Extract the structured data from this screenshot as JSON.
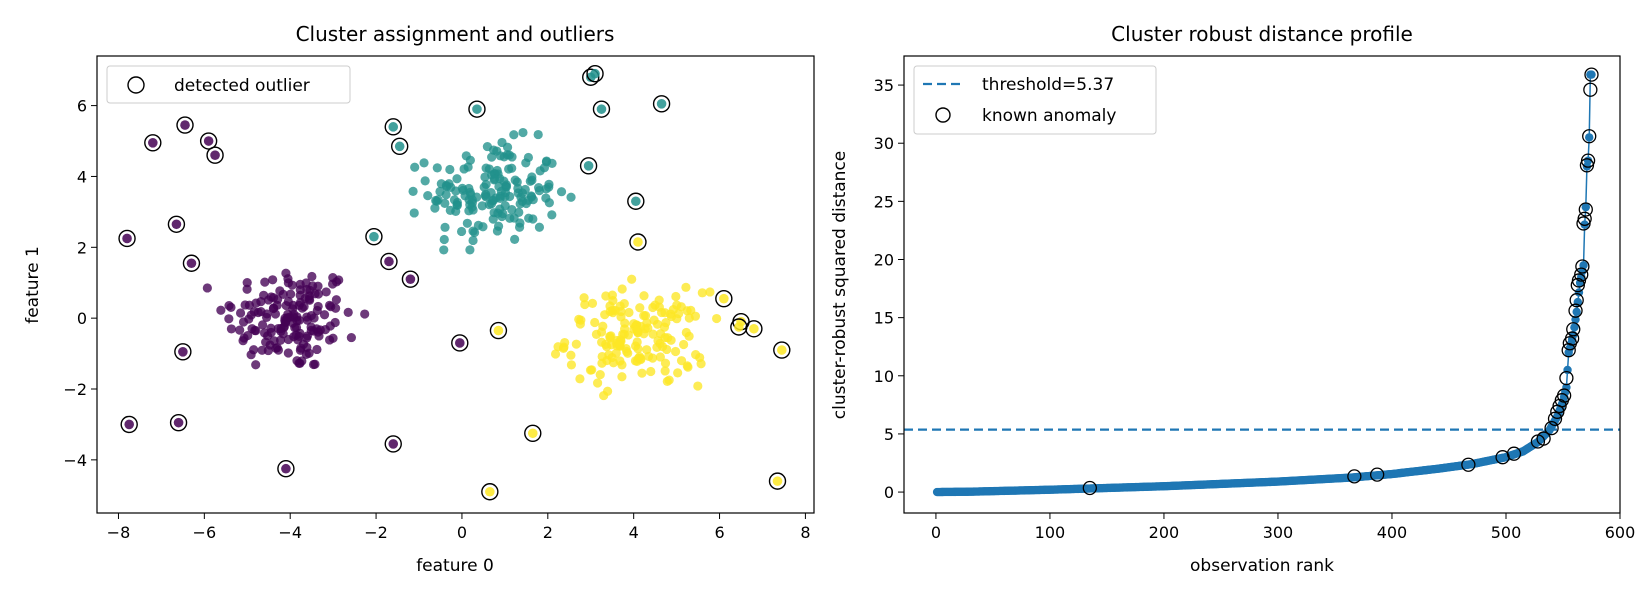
{
  "chart_data": [
    {
      "type": "scatter",
      "title": "Cluster assignment and outliers",
      "xlabel": "feature 0",
      "ylabel": "feature 1",
      "xlim": [
        -8.5,
        8.2
      ],
      "ylim": [
        -5.5,
        7.4
      ],
      "xticks": [
        -8,
        -6,
        -4,
        -2,
        0,
        2,
        4,
        6,
        8
      ],
      "yticks": [
        -4,
        -2,
        0,
        2,
        4,
        6
      ],
      "legend": {
        "placement": "upper-left",
        "entries": [
          "detected outlier"
        ]
      },
      "clusters": [
        {
          "color": "#440154",
          "center": [
            -4.0,
            0.0
          ],
          "spread": [
            0.75,
            0.75
          ],
          "n": 160
        },
        {
          "color": "#21918c",
          "center": [
            0.75,
            3.55
          ],
          "spread": [
            0.75,
            0.7
          ],
          "n": 160
        },
        {
          "color": "#fde725",
          "center": [
            4.05,
            -0.55
          ],
          "spread": [
            0.8,
            0.65
          ],
          "n": 160
        }
      ],
      "outliers": [
        {
          "x": -7.2,
          "y": 4.95,
          "c": "#440154"
        },
        {
          "x": -6.45,
          "y": 5.45,
          "c": "#440154"
        },
        {
          "x": -5.9,
          "y": 5.0,
          "c": "#440154"
        },
        {
          "x": -5.75,
          "y": 4.6,
          "c": "#440154"
        },
        {
          "x": -7.8,
          "y": 2.25,
          "c": "#440154"
        },
        {
          "x": -6.65,
          "y": 2.65,
          "c": "#440154"
        },
        {
          "x": -6.3,
          "y": 1.55,
          "c": "#440154"
        },
        {
          "x": -6.5,
          "y": -0.95,
          "c": "#440154"
        },
        {
          "x": -7.75,
          "y": -3.0,
          "c": "#440154"
        },
        {
          "x": -6.6,
          "y": -2.95,
          "c": "#440154"
        },
        {
          "x": -4.1,
          "y": -4.25,
          "c": "#440154"
        },
        {
          "x": -1.7,
          "y": 1.6,
          "c": "#440154"
        },
        {
          "x": -1.2,
          "y": 1.1,
          "c": "#440154"
        },
        {
          "x": -1.6,
          "y": -3.55,
          "c": "#440154"
        },
        {
          "x": -0.05,
          "y": -0.7,
          "c": "#440154"
        },
        {
          "x": -1.6,
          "y": 5.4,
          "c": "#21918c"
        },
        {
          "x": -1.45,
          "y": 4.85,
          "c": "#21918c"
        },
        {
          "x": 0.35,
          "y": 5.9,
          "c": "#21918c"
        },
        {
          "x": -2.05,
          "y": 2.3,
          "c": "#21918c"
        },
        {
          "x": 3.0,
          "y": 6.8,
          "c": "#21918c"
        },
        {
          "x": 3.1,
          "y": 6.9,
          "c": "#21918c"
        },
        {
          "x": 3.25,
          "y": 5.9,
          "c": "#21918c"
        },
        {
          "x": 4.65,
          "y": 6.05,
          "c": "#21918c"
        },
        {
          "x": 2.95,
          "y": 4.3,
          "c": "#21918c"
        },
        {
          "x": 4.05,
          "y": 3.3,
          "c": "#21918c"
        },
        {
          "x": 4.1,
          "y": 2.15,
          "c": "#fde725"
        },
        {
          "x": 0.85,
          "y": -0.35,
          "c": "#fde725"
        },
        {
          "x": 1.65,
          "y": -3.25,
          "c": "#fde725"
        },
        {
          "x": 0.65,
          "y": -4.9,
          "c": "#fde725"
        },
        {
          "x": 6.1,
          "y": 0.55,
          "c": "#fde725"
        },
        {
          "x": 6.5,
          "y": -0.1,
          "c": "#fde725"
        },
        {
          "x": 6.45,
          "y": -0.25,
          "c": "#fde725"
        },
        {
          "x": 6.8,
          "y": -0.3,
          "c": "#fde725"
        },
        {
          "x": 7.45,
          "y": -0.9,
          "c": "#fde725"
        },
        {
          "x": 7.35,
          "y": -4.6,
          "c": "#fde725"
        }
      ]
    },
    {
      "type": "line",
      "title": "Cluster robust distance profile",
      "xlabel": "observation rank",
      "ylabel": "cluster-robust squared distance",
      "xlim": [
        -28,
        600
      ],
      "ylim": [
        -1.8,
        37.5
      ],
      "xticks": [
        0,
        100,
        200,
        300,
        400,
        500,
        600
      ],
      "yticks": [
        0,
        5,
        10,
        15,
        20,
        25,
        30,
        35
      ],
      "threshold": 5.37,
      "n_points": 575,
      "legend": {
        "placement": "upper-left",
        "entries": [
          "threshold=5.37",
          "known anomaly"
        ]
      },
      "series_color": "#1f77b4",
      "profile_knots": [
        [
          0,
          0
        ],
        [
          30,
          0.03
        ],
        [
          100,
          0.2
        ],
        [
          200,
          0.5
        ],
        [
          300,
          0.9
        ],
        [
          365,
          1.25
        ],
        [
          400,
          1.55
        ],
        [
          440,
          2.0
        ],
        [
          470,
          2.4
        ],
        [
          500,
          3.0
        ],
        [
          515,
          3.5
        ],
        [
          528,
          4.3
        ],
        [
          538,
          5.3
        ],
        [
          545,
          6.5
        ],
        [
          550,
          7.8
        ],
        [
          553,
          9.0
        ],
        [
          555,
          12.0
        ],
        [
          559,
          13.5
        ],
        [
          562,
          15.5
        ],
        [
          565,
          18.0
        ],
        [
          568,
          19.5
        ],
        [
          569,
          23.0
        ],
        [
          570,
          24.5
        ],
        [
          571,
          28.0
        ],
        [
          572,
          28.5
        ],
        [
          573,
          30.5
        ],
        [
          574,
          35.9
        ]
      ],
      "anomaly_points": [
        [
          135,
          0.35
        ],
        [
          367,
          1.35
        ],
        [
          387,
          1.5
        ],
        [
          467,
          2.35
        ],
        [
          497,
          3.0
        ],
        [
          507,
          3.3
        ],
        [
          528,
          4.35
        ],
        [
          533,
          4.6
        ],
        [
          540,
          5.5
        ],
        [
          543,
          6.3
        ],
        [
          545,
          6.9
        ],
        [
          547,
          7.4
        ],
        [
          549,
          7.9
        ],
        [
          551,
          8.3
        ],
        [
          553,
          9.8
        ],
        [
          555,
          12.2
        ],
        [
          556,
          12.8
        ],
        [
          558,
          13.2
        ],
        [
          559,
          14.0
        ],
        [
          561,
          15.6
        ],
        [
          562,
          16.5
        ],
        [
          563,
          17.8
        ],
        [
          564,
          18.2
        ],
        [
          566,
          18.7
        ],
        [
          567,
          19.4
        ],
        [
          568,
          23.1
        ],
        [
          569,
          23.5
        ],
        [
          570,
          24.3
        ],
        [
          571,
          28.1
        ],
        [
          572,
          28.5
        ],
        [
          573,
          30.6
        ],
        [
          574,
          34.6
        ],
        [
          575,
          35.9
        ]
      ]
    }
  ]
}
